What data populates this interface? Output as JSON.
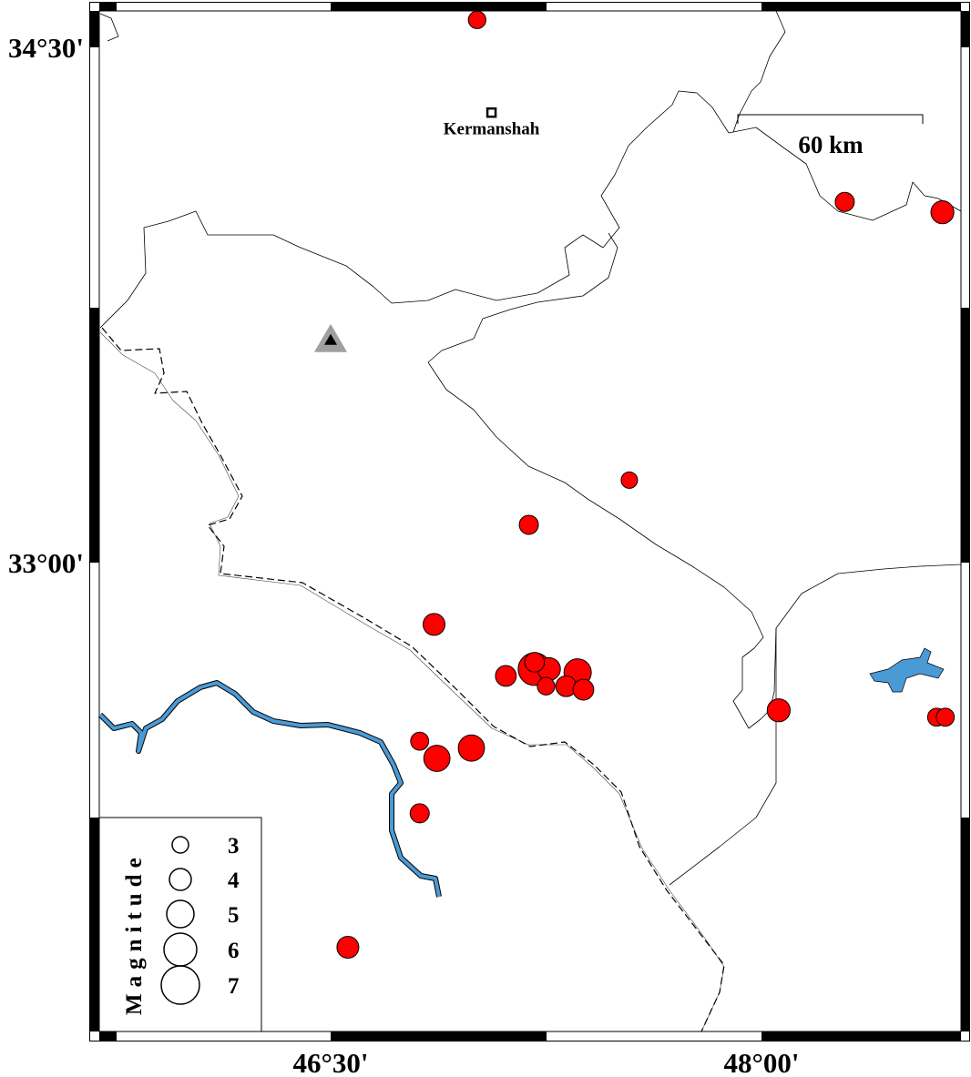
{
  "map": {
    "frame": {
      "lon_min": 45.98,
      "lon_max": 48.99,
      "lat_min": 31.22,
      "lat_max": 34.6
    },
    "axis_labels": {
      "left": [
        {
          "text": "34°30'",
          "lat": 34.5
        },
        {
          "text": "33°00'",
          "lat": 33.0
        }
      ],
      "bottom": [
        {
          "text": "46°30'",
          "lon": 46.5
        },
        {
          "text": "48°00'",
          "lon": 48.0
        }
      ]
    },
    "city": {
      "name": "Kermanshah",
      "lon": 47.06,
      "lat": 34.31
    },
    "station": {
      "name": "",
      "lon": 46.5,
      "lat": 33.65,
      "color": "#a0a0a0"
    },
    "scale_bar": {
      "label": "60 km"
    },
    "colors": {
      "quake": "#ff0000",
      "river": "#4a9ad6",
      "border": "#000000"
    },
    "legend": {
      "title": "Magnitude",
      "entries": [
        {
          "mag": 3,
          "label": "3"
        },
        {
          "mag": 4,
          "label": "4"
        },
        {
          "mag": 5,
          "label": "5"
        },
        {
          "mag": 6,
          "label": "6"
        },
        {
          "mag": 7,
          "label": "7"
        }
      ]
    },
    "earthquakes": [
      {
        "lon": 47.01,
        "lat": 34.58,
        "mag": 3.2
      },
      {
        "lon": 48.29,
        "lat": 34.05,
        "mag": 3.5
      },
      {
        "lon": 48.63,
        "lat": 34.02,
        "mag": 4.2
      },
      {
        "lon": 47.54,
        "lat": 33.24,
        "mag": 3.0
      },
      {
        "lon": 47.19,
        "lat": 33.11,
        "mag": 3.5
      },
      {
        "lon": 46.86,
        "lat": 32.82,
        "mag": 4.0
      },
      {
        "lon": 47.11,
        "lat": 32.67,
        "mag": 3.8
      },
      {
        "lon": 47.21,
        "lat": 32.69,
        "mag": 6.0
      },
      {
        "lon": 47.26,
        "lat": 32.69,
        "mag": 4.2
      },
      {
        "lon": 47.36,
        "lat": 32.68,
        "mag": 5.0
      },
      {
        "lon": 47.25,
        "lat": 32.64,
        "mag": 3.2
      },
      {
        "lon": 47.32,
        "lat": 32.64,
        "mag": 3.8
      },
      {
        "lon": 47.38,
        "lat": 32.63,
        "mag": 3.8
      },
      {
        "lon": 47.21,
        "lat": 32.71,
        "mag": 3.6
      },
      {
        "lon": 48.06,
        "lat": 32.57,
        "mag": 4.2
      },
      {
        "lon": 48.61,
        "lat": 32.55,
        "mag": 3.3
      },
      {
        "lon": 48.64,
        "lat": 32.55,
        "mag": 3.3
      },
      {
        "lon": 46.81,
        "lat": 32.48,
        "mag": 3.3
      },
      {
        "lon": 46.87,
        "lat": 32.43,
        "mag": 4.8
      },
      {
        "lon": 46.99,
        "lat": 32.46,
        "mag": 4.8
      },
      {
        "lon": 46.81,
        "lat": 32.27,
        "mag": 3.5
      },
      {
        "lon": 46.56,
        "lat": 31.88,
        "mag": 4.0
      }
    ]
  }
}
